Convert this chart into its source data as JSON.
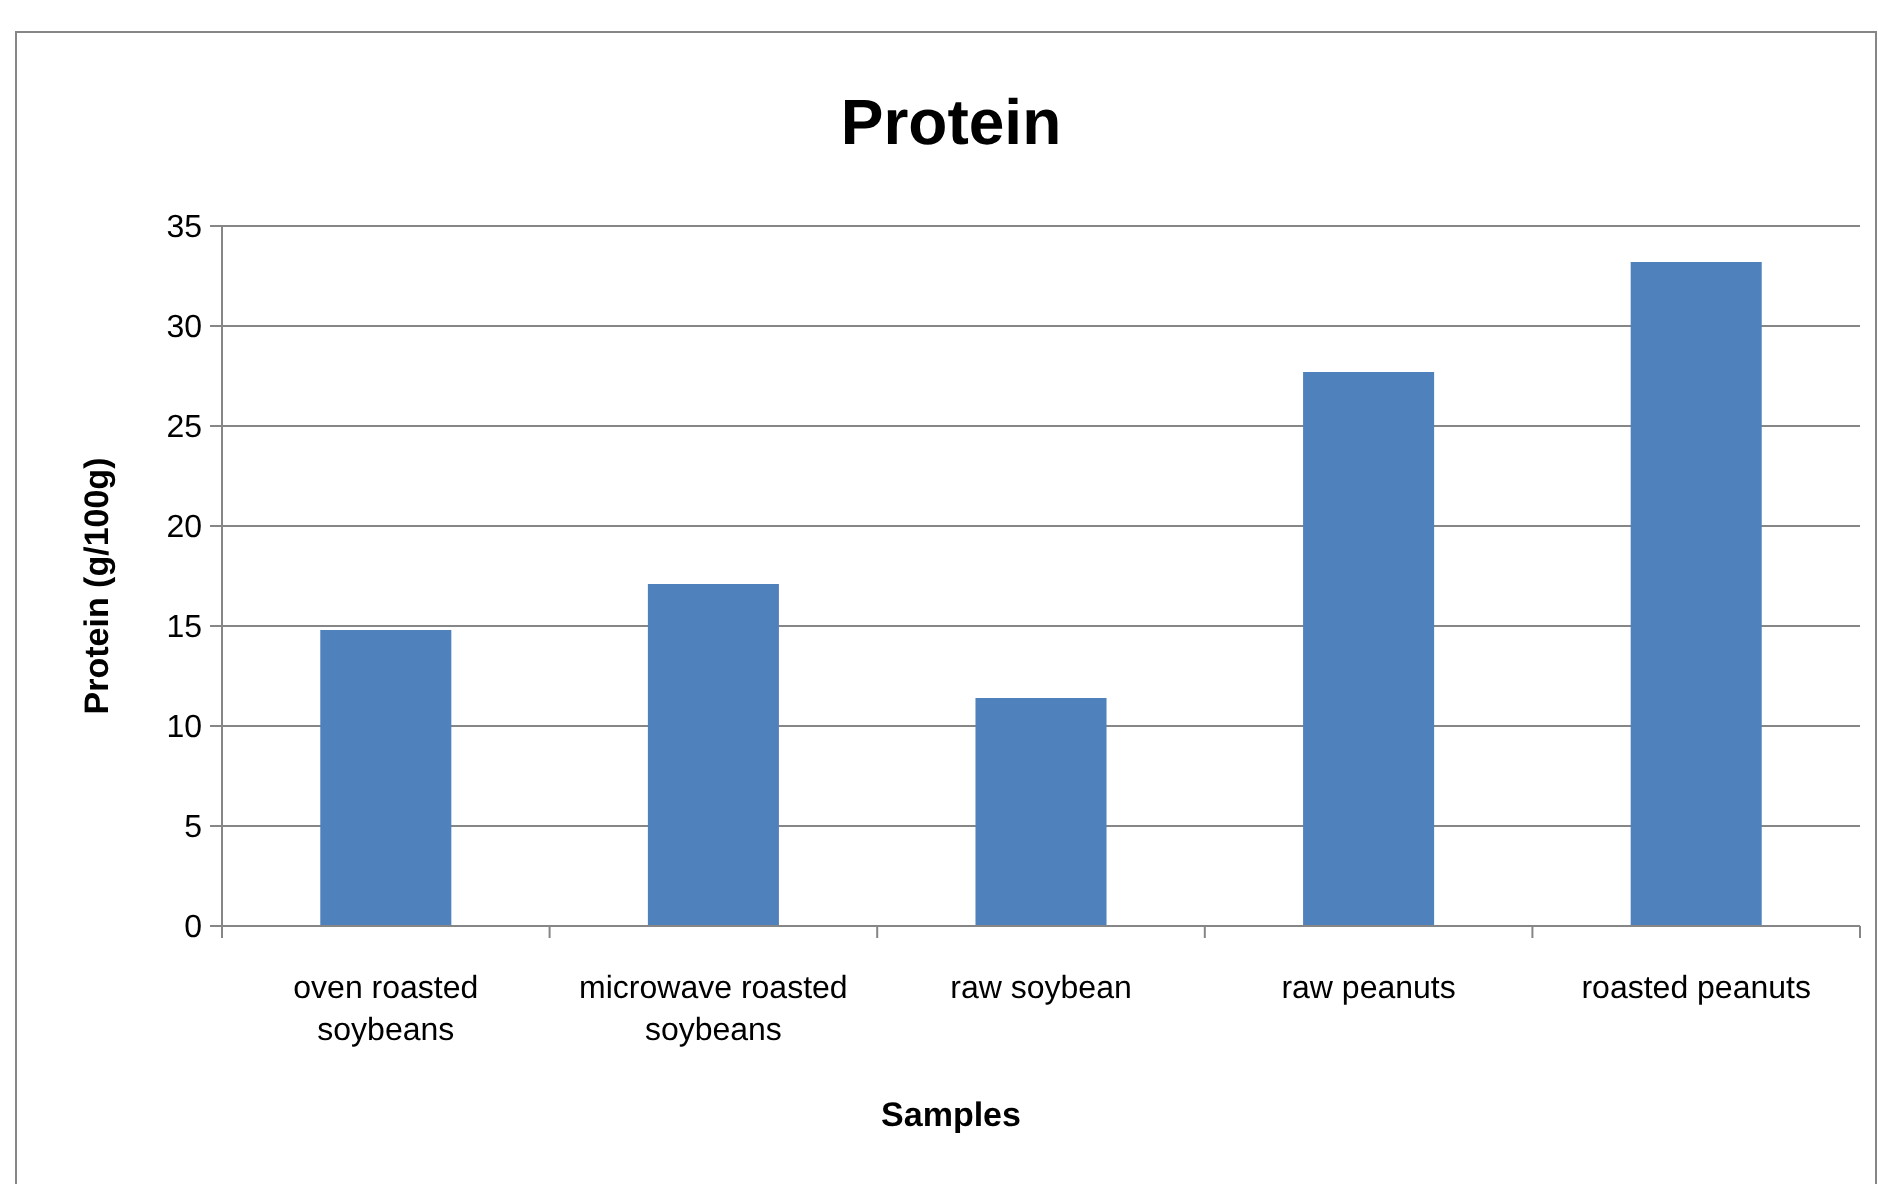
{
  "chart_data": {
    "type": "bar",
    "title": "Protein",
    "xlabel": "Samples",
    "ylabel": "Protein (g/100g)",
    "categories": [
      "oven roasted soybeans",
      "microwave roasted soybeans",
      "raw soybean",
      "raw peanuts",
      "roasted peanuts"
    ],
    "values": [
      14.8,
      17.1,
      11.4,
      27.7,
      33.2
    ],
    "color": "#4f81bd",
    "ylim": [
      0,
      35
    ],
    "yticks": [
      0,
      5,
      10,
      15,
      20,
      25,
      30,
      35
    ],
    "grid": "y"
  }
}
